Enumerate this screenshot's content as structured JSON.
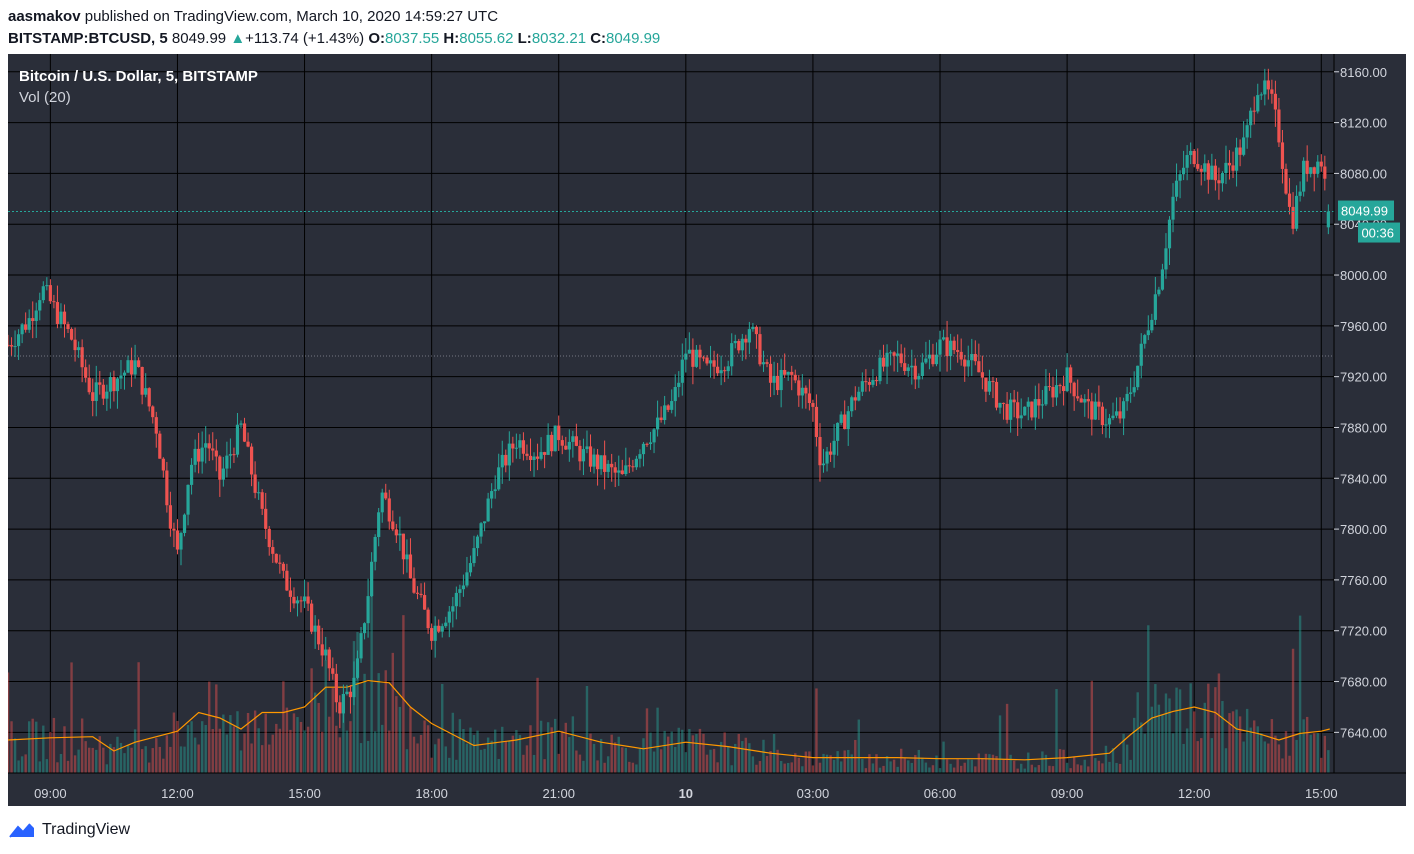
{
  "header": {
    "author": "aasmakov",
    "published_text": "published on TradingView.com, March 10, 2020 14:59:27 UTC",
    "symbol": "BITSTAMP:BTCUSD, 5",
    "last": "8049.99",
    "change_arrow": "▲",
    "change": "+113.74 (+1.43%)",
    "o_label": "O:",
    "o_value": "8037.55",
    "h_label": "H:",
    "h_value": "8055.62",
    "l_label": "L:",
    "l_value": "8032.21",
    "c_label": "C:",
    "c_value": "8049.99"
  },
  "footer": {
    "brand": "TradingView"
  },
  "colors": {
    "background": "#2a2e39",
    "grid": "#000000",
    "up": "#26a69a",
    "down": "#ef5350",
    "volume_ma": "#ff9800",
    "axis_text": "#d1d4dc",
    "price_badge": "#26a69a"
  },
  "chart_data": {
    "type": "candlestick",
    "title": "Bitcoin / U.S. Dollar, 5, BITSTAMP",
    "indicator": "Vol (20)",
    "y_ticks": [
      8160,
      8120,
      8080,
      8040,
      8000,
      7960,
      7920,
      7880,
      7840,
      7800,
      7760,
      7720,
      7680,
      7640
    ],
    "y_tick_labels": [
      "8160.00",
      "8120.00",
      "8080.00",
      "8040.00",
      "8000.00",
      "7960.00",
      "7920.00",
      "7880.00",
      "7840.00",
      "7800.00",
      "7760.00",
      "7720.00",
      "7680.00",
      "7640.00"
    ],
    "ylim": [
      7608,
      8174
    ],
    "x_labels": [
      "09:00",
      "12:00",
      "15:00",
      "18:00",
      "21:00",
      "10",
      "03:00",
      "06:00",
      "09:00",
      "12:00",
      "15:00"
    ],
    "x_label_hours": [
      9,
      12,
      15,
      18,
      21,
      24,
      27,
      30,
      33,
      36,
      39
    ],
    "x_bold_labels": [
      "10"
    ],
    "xlim_hours": [
      8.0,
      39.3
    ],
    "last_price": 8049.99,
    "last_price_label": "8049.99",
    "countdown": "00:36",
    "reference_price": 7936.25,
    "price_path_hours": [
      8.0,
      8.5,
      8.8,
      9.5,
      10.0,
      11.0,
      11.5,
      11.8,
      12.0,
      12.3,
      12.7,
      13.0,
      13.5,
      14.0,
      14.5,
      15.0,
      15.5,
      15.8,
      16.2,
      16.5,
      16.8,
      17.2,
      17.5,
      18.0,
      18.5,
      19.0,
      19.5,
      20.0,
      20.5,
      21.0,
      21.5,
      22.0,
      22.5,
      23.0,
      23.3,
      23.7,
      24.0,
      24.5,
      25.0,
      25.5,
      26.0,
      26.5,
      27.0,
      27.2,
      27.5,
      28.0,
      28.5,
      29.0,
      29.5,
      30.0,
      30.5,
      31.0,
      31.5,
      32.0,
      32.5,
      33.0,
      33.5,
      34.0,
      34.3,
      34.6,
      34.9,
      35.2,
      35.5,
      35.8,
      36.0,
      36.5,
      36.8,
      37.2,
      37.5,
      37.8,
      38.0,
      38.3,
      38.6,
      39.0,
      39.2
    ],
    "price_path_values": [
      7945,
      7965,
      7990,
      7950,
      7905,
      7930,
      7880,
      7815,
      7780,
      7850,
      7870,
      7840,
      7880,
      7810,
      7760,
      7740,
      7700,
      7660,
      7680,
      7750,
      7830,
      7800,
      7760,
      7720,
      7740,
      7780,
      7840,
      7870,
      7860,
      7875,
      7860,
      7850,
      7840,
      7870,
      7880,
      7900,
      7940,
      7925,
      7935,
      7960,
      7915,
      7920,
      7895,
      7850,
      7870,
      7905,
      7925,
      7935,
      7925,
      7945,
      7940,
      7920,
      7895,
      7890,
      7905,
      7920,
      7895,
      7885,
      7890,
      7920,
      7960,
      8000,
      8060,
      8090,
      8095,
      8075,
      8085,
      8105,
      8150,
      8140,
      8110,
      8040,
      8085,
      8090,
      8050
    ],
    "volume_scale_note": "volume bars share bottom pane with Vol(20) moving average",
    "volume_ma_hours": [
      8.0,
      9.0,
      10.0,
      10.5,
      11.0,
      12.0,
      12.5,
      13.0,
      13.5,
      14.0,
      14.5,
      15.0,
      15.5,
      16.0,
      16.5,
      17.0,
      17.5,
      18.0,
      19.0,
      20.0,
      21.0,
      22.0,
      23.0,
      24.0,
      25.0,
      26.0,
      27.0,
      28.0,
      29.0,
      30.0,
      31.0,
      32.0,
      33.0,
      34.0,
      34.5,
      35.0,
      35.5,
      36.0,
      36.5,
      37.0,
      37.5,
      38.0,
      38.5,
      39.0,
      39.2
    ],
    "volume_ma_values": [
      30,
      32,
      33,
      20,
      28,
      38,
      55,
      50,
      40,
      55,
      55,
      60,
      78,
      78,
      84,
      82,
      60,
      45,
      25,
      30,
      38,
      28,
      22,
      28,
      24,
      18,
      14,
      14,
      14,
      13,
      13,
      12,
      14,
      18,
      35,
      50,
      56,
      60,
      55,
      40,
      36,
      30,
      36,
      38,
      40
    ]
  }
}
